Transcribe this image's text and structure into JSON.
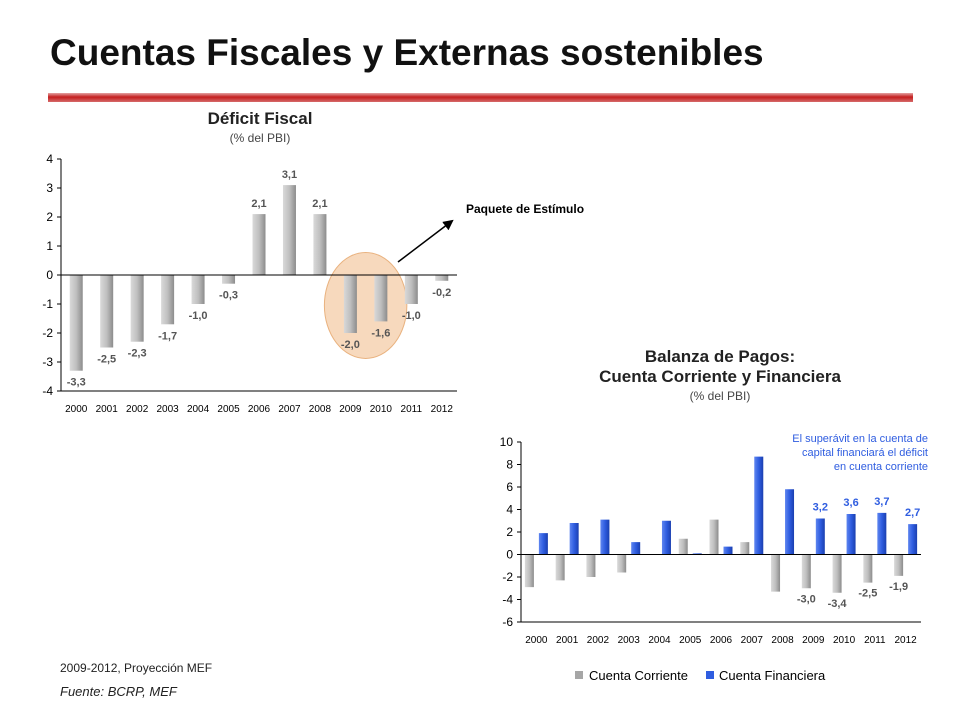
{
  "slide": {
    "title": "Cuentas Fiscales y Externas sostenibles",
    "footnote": "2009-2012,  Proyección MEF",
    "source": "Fuente: BCRP, MEF"
  },
  "chart_data": [
    {
      "type": "bar",
      "title": "Déficit Fiscal",
      "subtitle": "(% del PBI)",
      "categories": [
        "2000",
        "2001",
        "2002",
        "2003",
        "2004",
        "2005",
        "2006",
        "2007",
        "2008",
        "2009",
        "2010",
        "2011",
        "2012"
      ],
      "values": [
        -3.3,
        -2.5,
        -2.3,
        -1.7,
        -1.0,
        -0.3,
        2.1,
        3.1,
        2.1,
        -2.0,
        -1.6,
        -1.0,
        -0.2
      ],
      "value_labels": [
        "-3,3",
        "-2,5",
        "-2,3",
        "-1,7",
        "-1,0",
        "-0,3",
        "2,1",
        "3,1",
        "2,1",
        "-2,0",
        "-1,6",
        "-1,0",
        "-0,2"
      ],
      "ylim": [
        -4,
        4
      ],
      "yticks": [
        4,
        3,
        2,
        1,
        0,
        -1,
        -2,
        -3,
        -4
      ],
      "ytick_labels": [
        "4",
        "3",
        "2",
        "1",
        "0",
        "-1",
        "-2",
        "-3",
        "-4"
      ],
      "bar_color": "#a6a6a6",
      "annotation": {
        "text": "Paquete de Estímulo",
        "highlighted_categories": [
          "2009",
          "2010"
        ],
        "highlight_color": "#f7d9bd"
      }
    },
    {
      "type": "bar",
      "title_line1": "Balanza de Pagos:",
      "title_line2": "Cuenta Corriente y Financiera",
      "subtitle": "(% del PBI)",
      "categories": [
        "2000",
        "2001",
        "2002",
        "2003",
        "2004",
        "2005",
        "2006",
        "2007",
        "2008",
        "2009",
        "2010",
        "2011",
        "2012"
      ],
      "series": [
        {
          "name": "Cuenta Corriente",
          "color": "#a6a6a6",
          "values": [
            -2.9,
            -2.3,
            -2.0,
            -1.6,
            0.0,
            1.4,
            3.1,
            1.1,
            -3.3,
            -3.0,
            -3.4,
            -2.5,
            -1.9
          ],
          "value_labels": [
            "",
            "",
            "",
            "",
            "",
            "",
            "",
            "",
            "",
            "-3,0",
            "-3,4",
            "-2,5",
            "-1,9"
          ]
        },
        {
          "name": "Cuenta Financiera",
          "color": "#2f5de0",
          "values": [
            1.9,
            2.8,
            3.1,
            1.1,
            3.0,
            0.1,
            0.7,
            8.7,
            5.8,
            3.2,
            3.6,
            3.7,
            2.7
          ],
          "value_labels": [
            "",
            "",
            "",
            "",
            "",
            "",
            "",
            "",
            "",
            "3,2",
            "3,6",
            "3,7",
            "2,7"
          ]
        }
      ],
      "ylim": [
        -6,
        10
      ],
      "yticks": [
        10,
        8,
        6,
        4,
        2,
        0,
        -2,
        -4,
        -6
      ],
      "ytick_labels": [
        "10",
        "8",
        "6",
        "4",
        "2",
        "0",
        "-2",
        "-4",
        "-6"
      ],
      "legend": "bottom",
      "annotation": {
        "lines": [
          "El superávit en la cuenta de",
          "capital financiará el déficit",
          "en cuenta corriente"
        ],
        "color": "#2f5de0"
      }
    }
  ]
}
